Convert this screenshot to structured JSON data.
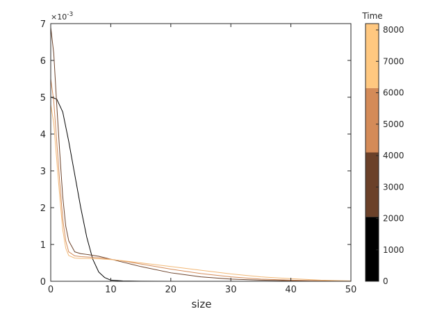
{
  "chart_data": {
    "type": "line",
    "xlabel": "size",
    "ylabel": "",
    "title": "",
    "xlim": [
      0,
      50
    ],
    "ylim": [
      0,
      0.007
    ],
    "x_ticks": [
      0,
      10,
      20,
      30,
      40,
      50
    ],
    "y_ticks": [
      0,
      1,
      2,
      3,
      4,
      5,
      6,
      7
    ],
    "y_multiplier_label": "×10",
    "y_multiplier_exponent": "-3",
    "grid": false,
    "series": [
      {
        "color": "#000000",
        "x": [
          0,
          1,
          2,
          3,
          4,
          5,
          6,
          7,
          8,
          9,
          10,
          12,
          15,
          20,
          50
        ],
        "y": [
          0.005,
          0.00495,
          0.0046,
          0.0038,
          0.0029,
          0.002,
          0.0012,
          0.0006,
          0.00025,
          0.0001,
          3e-05,
          1e-05,
          3e-06,
          5e-07,
          0
        ]
      },
      {
        "color": "#6b4129",
        "x": [
          0,
          0.5,
          1,
          1.5,
          2,
          2.5,
          3,
          4,
          5,
          6,
          8,
          10,
          12,
          15,
          20,
          25,
          30,
          35,
          40,
          45,
          50
        ],
        "y": [
          0.0069,
          0.0062,
          0.0048,
          0.0035,
          0.0023,
          0.0015,
          0.0011,
          0.0008,
          0.00075,
          0.00073,
          0.00068,
          0.0006,
          0.00052,
          0.0004,
          0.00023,
          0.00012,
          6e-05,
          3e-05,
          1.5e-05,
          7e-06,
          3e-06
        ]
      },
      {
        "color": "#d48b58",
        "x": [
          0,
          0.5,
          1,
          1.5,
          2,
          2.5,
          3,
          4,
          5,
          6,
          8,
          10,
          12,
          15,
          20,
          25,
          30,
          35,
          40,
          45,
          50
        ],
        "y": [
          0.0055,
          0.0049,
          0.0038,
          0.0027,
          0.0017,
          0.0011,
          0.0008,
          0.00069,
          0.00067,
          0.00066,
          0.00064,
          0.0006,
          0.00055,
          0.00047,
          0.00033,
          0.00021,
          0.00012,
          6e-05,
          3e-05,
          1.5e-05,
          7e-06
        ]
      },
      {
        "color": "#f2b774",
        "x": [
          0,
          0.5,
          1,
          1.5,
          2,
          2.5,
          3,
          4,
          5,
          6,
          8,
          10,
          12,
          15,
          20,
          25,
          30,
          35,
          40,
          45,
          50
        ],
        "y": [
          0.0048,
          0.0043,
          0.0033,
          0.0023,
          0.0014,
          0.0009,
          0.0007,
          0.00063,
          0.00062,
          0.00062,
          0.00061,
          0.00059,
          0.00056,
          0.0005,
          0.0004,
          0.0003,
          0.0002,
          0.00012,
          7e-05,
          3e-05,
          1e-05
        ]
      }
    ],
    "colorbar": {
      "label": "Time",
      "range": [
        0,
        8200
      ],
      "ticks": [
        0,
        1000,
        2000,
        3000,
        4000,
        5000,
        6000,
        7000,
        8000
      ],
      "bands": [
        {
          "from": 0,
          "to": 2050,
          "color": "#000000"
        },
        {
          "from": 2050,
          "to": 4100,
          "color": "#6b4129"
        },
        {
          "from": 4100,
          "to": 6150,
          "color": "#d48b58"
        },
        {
          "from": 6150,
          "to": 8200,
          "color": "#ffc880"
        }
      ]
    }
  }
}
